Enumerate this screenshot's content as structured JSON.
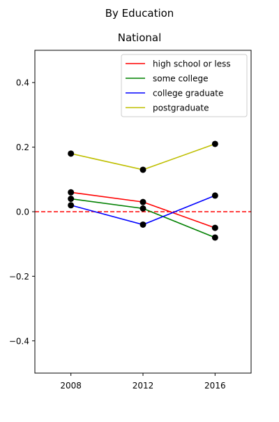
{
  "chart_data": {
    "type": "line",
    "suptitle": "By Education",
    "title": "National",
    "x": [
      2008,
      2012,
      2016
    ],
    "xticks": [
      "2008",
      "2012",
      "2016"
    ],
    "xlim": [
      2006,
      2018
    ],
    "ylim": [
      -0.5,
      0.5
    ],
    "yticks": [
      -0.4,
      -0.2,
      0.0,
      0.2,
      0.4
    ],
    "ytick_labels": [
      "−0.4",
      "−0.2",
      "0.0",
      "0.2",
      "0.4"
    ],
    "reference_line": {
      "y": 0,
      "style": "dashed",
      "color": "#ff0000"
    },
    "marker_color": "#000000",
    "legend_position": "top-right",
    "grid": false,
    "series": [
      {
        "name": "high school or less",
        "color": "#ff0000",
        "values": [
          0.06,
          0.03,
          -0.05
        ]
      },
      {
        "name": "some college",
        "color": "#008000",
        "values": [
          0.04,
          0.01,
          -0.08
        ]
      },
      {
        "name": "college graduate",
        "color": "#0000ff",
        "values": [
          0.02,
          -0.04,
          0.05
        ]
      },
      {
        "name": "postgraduate",
        "color": "#bfbf00",
        "values": [
          0.18,
          0.13,
          0.21
        ]
      }
    ]
  }
}
